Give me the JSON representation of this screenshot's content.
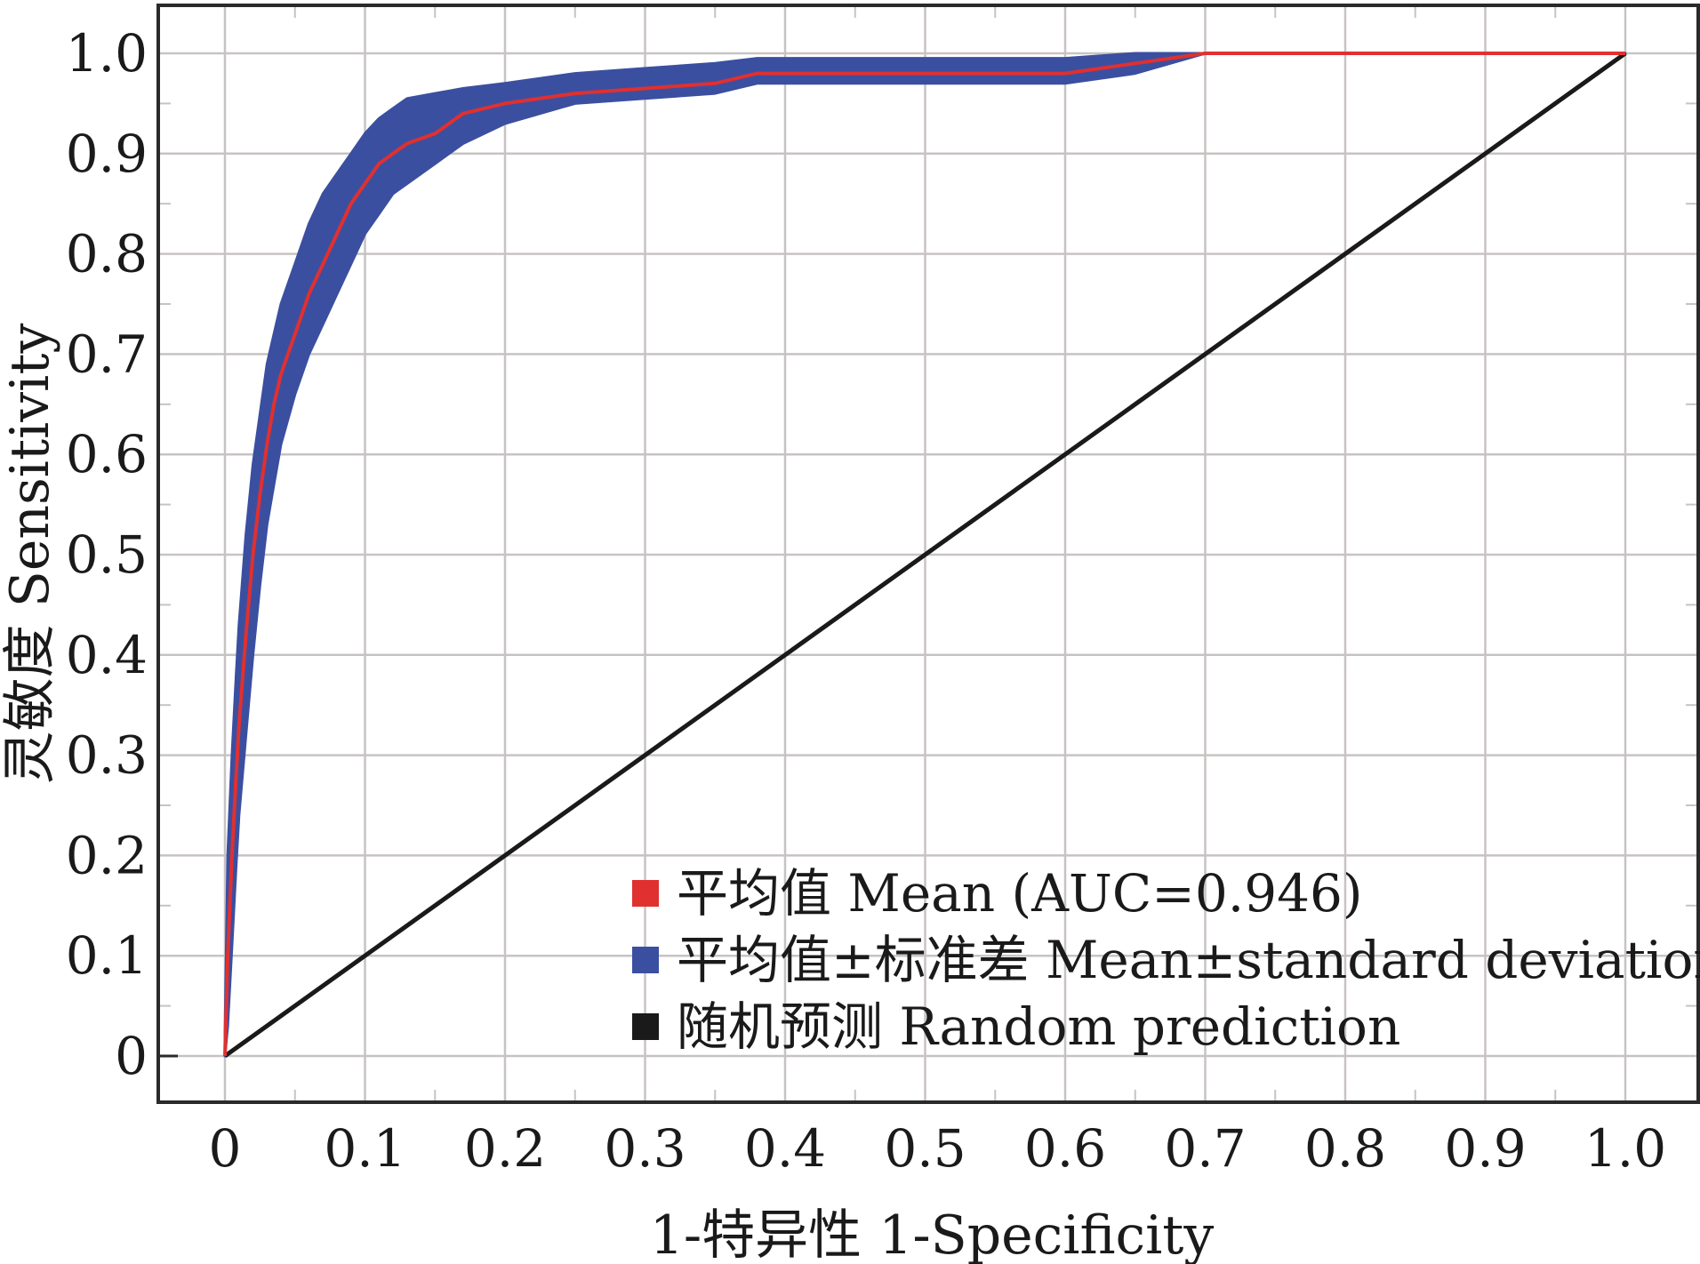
{
  "chart_data": {
    "type": "line",
    "title": "",
    "xlabel": "1-特异性 1-Specificity",
    "ylabel": "灵敏度 Sensitivity",
    "xlim": [
      0,
      1
    ],
    "ylim": [
      0,
      1
    ],
    "xticks": [
      0,
      0.1,
      0.2,
      0.3,
      0.4,
      0.5,
      0.6,
      0.7,
      0.8,
      0.9,
      1.0
    ],
    "yticks": [
      0,
      0.1,
      0.2,
      0.3,
      0.4,
      0.5,
      0.6,
      0.7,
      0.8,
      0.9,
      1.0
    ],
    "xtick_labels": [
      "0",
      "0.1",
      "0.2",
      "0.3",
      "0.4",
      "0.5",
      "0.6",
      "0.7",
      "0.8",
      "0.9",
      "1.0"
    ],
    "ytick_labels": [
      "0",
      "0.1",
      "0.2",
      "0.3",
      "0.4",
      "0.5",
      "0.6",
      "0.7",
      "0.8",
      "0.9",
      "1.0"
    ],
    "grid": true,
    "legend_position": "bottom-right",
    "series": [
      {
        "name": "平均值 Mean (AUC=0.946)",
        "kind": "line",
        "color": "#e03030",
        "x": [
          0,
          0.002,
          0.005,
          0.008,
          0.01,
          0.015,
          0.02,
          0.025,
          0.03,
          0.035,
          0.04,
          0.05,
          0.06,
          0.07,
          0.08,
          0.09,
          0.1,
          0.11,
          0.12,
          0.13,
          0.15,
          0.17,
          0.2,
          0.25,
          0.3,
          0.35,
          0.38,
          0.5,
          0.6,
          0.65,
          0.7,
          0.8,
          0.9,
          1.0
        ],
        "y": [
          0,
          0.1,
          0.2,
          0.28,
          0.33,
          0.42,
          0.5,
          0.56,
          0.61,
          0.65,
          0.68,
          0.72,
          0.76,
          0.79,
          0.82,
          0.85,
          0.87,
          0.89,
          0.9,
          0.91,
          0.92,
          0.94,
          0.95,
          0.96,
          0.965,
          0.97,
          0.98,
          0.98,
          0.98,
          0.99,
          1.0,
          1.0,
          1.0,
          1.0
        ]
      },
      {
        "name": "平均值±标准差 Mean±standard deviation",
        "kind": "band",
        "color": "#3b4fa0",
        "x": [
          0,
          0.002,
          0.005,
          0.008,
          0.01,
          0.015,
          0.02,
          0.025,
          0.03,
          0.035,
          0.04,
          0.05,
          0.06,
          0.07,
          0.08,
          0.09,
          0.1,
          0.11,
          0.12,
          0.13,
          0.15,
          0.17,
          0.2,
          0.25,
          0.3,
          0.35,
          0.38,
          0.5,
          0.6,
          0.65,
          0.7,
          0.8,
          0.9,
          1.0
        ],
        "upper": [
          0.02,
          0.2,
          0.3,
          0.38,
          0.43,
          0.52,
          0.59,
          0.64,
          0.69,
          0.72,
          0.75,
          0.79,
          0.83,
          0.86,
          0.88,
          0.9,
          0.92,
          0.935,
          0.945,
          0.955,
          0.96,
          0.965,
          0.97,
          0.98,
          0.985,
          0.99,
          0.995,
          0.995,
          0.995,
          1.0,
          1.0,
          1.0,
          1.0,
          1.0
        ],
        "lower": [
          0,
          0.03,
          0.11,
          0.19,
          0.24,
          0.32,
          0.4,
          0.47,
          0.53,
          0.57,
          0.61,
          0.66,
          0.7,
          0.73,
          0.76,
          0.79,
          0.82,
          0.84,
          0.86,
          0.87,
          0.89,
          0.91,
          0.93,
          0.95,
          0.955,
          0.96,
          0.97,
          0.97,
          0.97,
          0.98,
          1.0,
          1.0,
          1.0,
          1.0
        ]
      },
      {
        "name": "随机预测 Random prediction",
        "kind": "line",
        "color": "#1a1a1a",
        "x": [
          0,
          1
        ],
        "y": [
          0,
          1
        ]
      }
    ],
    "colors": {
      "frame": "#2a2a2a",
      "grid": "#c8c3c3",
      "background": "#ffffff"
    }
  }
}
